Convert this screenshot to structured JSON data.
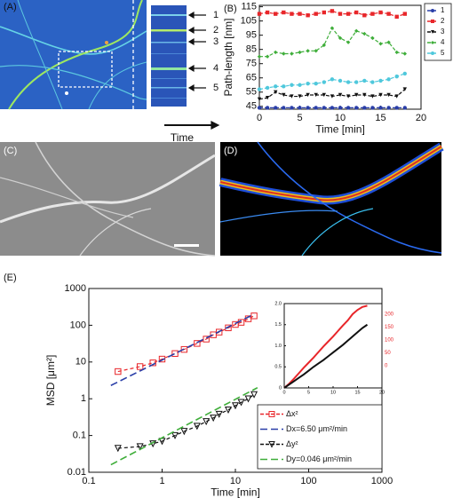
{
  "panels": {
    "labels": [
      "(A)",
      "(B)",
      "(C)",
      "(D)",
      "(E)"
    ],
    "kymograph_labels": [
      "1",
      "2",
      "3",
      "4",
      "5"
    ],
    "time_label": "Time"
  },
  "chart_data": [
    {
      "type": "line",
      "xlabel": "Time [min]",
      "ylabel": "Path-length [nm]",
      "x": [
        0,
        1,
        2,
        3,
        4,
        5,
        6,
        7,
        8,
        9,
        10,
        11,
        12,
        13,
        14,
        15,
        16,
        17,
        18
      ],
      "xlim": [
        0,
        20
      ],
      "xticks": [
        0,
        5,
        10,
        15,
        20
      ],
      "ylim": [
        43,
        116
      ],
      "yticks": [
        45,
        55,
        65,
        75,
        85,
        95,
        105,
        115
      ],
      "legend": "right",
      "series": [
        {
          "name": "1",
          "color": "#2a3ea8",
          "marker": "circle",
          "values": [
            44,
            44,
            44,
            44,
            44,
            44,
            44,
            44,
            44,
            44,
            44,
            44,
            44,
            44,
            44,
            44,
            44,
            44,
            44
          ]
        },
        {
          "name": "2",
          "color": "#e8262a",
          "marker": "square",
          "values": [
            110,
            111,
            110,
            111,
            110,
            110,
            109,
            110,
            111,
            112,
            110,
            110,
            111,
            109,
            110,
            111,
            110,
            108,
            110
          ]
        },
        {
          "name": "3",
          "color": "#111111",
          "marker": "triangle",
          "values": [
            50,
            51,
            55,
            53,
            52,
            52,
            53,
            53,
            53,
            52,
            53,
            52,
            53,
            53,
            52,
            53,
            53,
            52,
            57
          ]
        },
        {
          "name": "4",
          "color": "#3fae3a",
          "marker": "diamond",
          "values": [
            80,
            80,
            83,
            82,
            82,
            83,
            84,
            84,
            88,
            100,
            93,
            90,
            98,
            96,
            93,
            89,
            90,
            83,
            82
          ]
        },
        {
          "name": "5",
          "color": "#4fc8dc",
          "marker": "circle",
          "values": [
            57,
            58,
            59,
            59,
            60,
            60,
            61,
            61,
            62,
            64,
            63,
            62,
            62,
            63,
            62,
            63,
            64,
            66,
            68
          ]
        }
      ]
    },
    {
      "type": "scatter",
      "xlabel": "Time [min]",
      "ylabel": "MSD [μm²]",
      "xscale": "log",
      "yscale": "log",
      "xlim": [
        0.1,
        1000
      ],
      "xticks": [
        0.1,
        1,
        10,
        100,
        1000
      ],
      "ylim": [
        0.01,
        1000
      ],
      "yticks": [
        0.01,
        0.1,
        1,
        10,
        100,
        1000
      ],
      "y2lim": [
        0,
        200
      ],
      "y2ticks": [
        0,
        50,
        100,
        150,
        200
      ],
      "y2color": "#e8262a",
      "legend": "lower right",
      "series": [
        {
          "name": "Δx²",
          "color": "#e8262a",
          "marker": "square",
          "x": [
            0.25,
            0.5,
            0.75,
            1,
            1.5,
            2,
            3,
            4,
            5,
            6,
            8,
            10,
            12,
            15,
            18
          ],
          "values": [
            5.5,
            7.5,
            9.5,
            12,
            17,
            22,
            32,
            42,
            55,
            65,
            85,
            105,
            120,
            150,
            180
          ]
        },
        {
          "name": "Dx=6.50 μm²/min",
          "color": "#2a3ea8",
          "marker": "none",
          "x": [
            0.2,
            18
          ],
          "values": [
            2.3,
            200
          ]
        },
        {
          "name": "Δy²",
          "color": "#111111",
          "marker": "triangle",
          "x": [
            0.25,
            0.5,
            0.75,
            1,
            1.5,
            2,
            3,
            4,
            5,
            6,
            8,
            10,
            12,
            15,
            18
          ],
          "values": [
            0.045,
            0.05,
            0.06,
            0.07,
            0.1,
            0.13,
            0.18,
            0.24,
            0.3,
            0.38,
            0.5,
            0.65,
            0.8,
            1.0,
            1.3
          ]
        },
        {
          "name": "Dy=0.046 μm²/min",
          "color": "#3fae3a",
          "marker": "none",
          "x": [
            0.2,
            20
          ],
          "values": [
            0.016,
            2
          ]
        }
      ]
    },
    {
      "type": "line",
      "x": [
        0,
        1,
        2,
        3,
        4,
        5,
        6,
        7,
        8,
        9,
        10,
        11,
        12,
        13,
        14,
        15,
        16,
        17
      ],
      "xlim": [
        0,
        20
      ],
      "xticks": [
        0,
        5,
        10,
        15,
        20
      ],
      "ylim": [
        0,
        2
      ],
      "yticks": [
        0,
        0.5,
        {
          "value": 1,
          "label": "1.0"
        },
        1.5,
        {
          "value": 2,
          "label": "2.0"
        }
      ],
      "series": [
        {
          "color": "#e8262a",
          "marker": "none",
          "values": [
            0,
            0.1,
            0.22,
            0.35,
            0.48,
            0.6,
            0.72,
            0.85,
            0.98,
            1.1,
            1.22,
            1.35,
            1.48,
            1.6,
            1.75,
            1.85,
            1.92,
            1.95
          ]
        },
        {
          "color": "#111111",
          "marker": "none",
          "values": [
            0,
            0.08,
            0.16,
            0.24,
            0.32,
            0.41,
            0.5,
            0.58,
            0.66,
            0.75,
            0.84,
            0.93,
            1.02,
            1.12,
            1.22,
            1.32,
            1.42,
            1.5
          ]
        }
      ]
    }
  ]
}
